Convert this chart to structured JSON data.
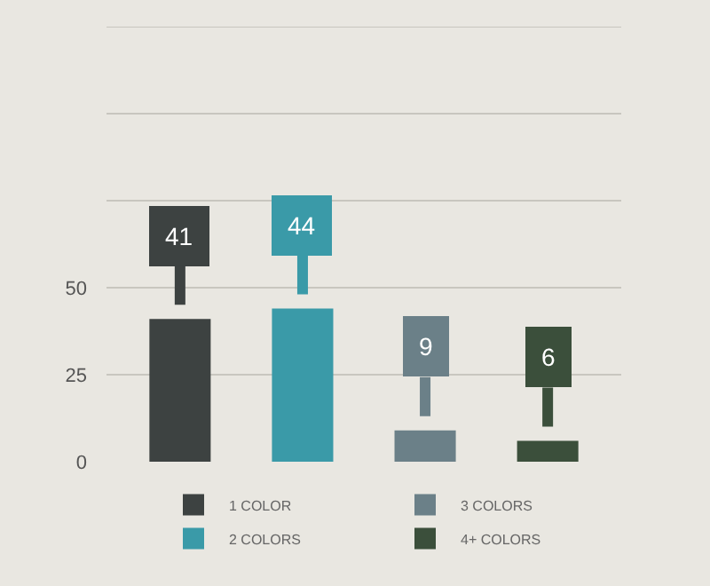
{
  "chart_data": {
    "type": "bar",
    "categories": [
      null,
      null,
      null,
      null
    ],
    "series": [
      {
        "name": "1 COLOR",
        "color": "#3d4241",
        "values": [
          41,
          null,
          null,
          null
        ]
      },
      {
        "name": "2 COLORS",
        "color": "#3a9aa8",
        "values": [
          null,
          44,
          null,
          null
        ]
      },
      {
        "name": "3 COLORS",
        "color": "#6b8088",
        "values": [
          null,
          null,
          9,
          null
        ]
      },
      {
        "name": "4+ COLORS",
        "color": "#3b4f3b",
        "values": [
          null,
          null,
          null,
          6
        ]
      }
    ],
    "ylim": [
      0,
      125
    ],
    "yticks": [
      0,
      25,
      50,
      {
        "value": 75,
        "label": null
      },
      {
        "value": 100,
        "label": null
      },
      {
        "value": 125,
        "label": null
      }
    ],
    "grid": "y",
    "legend": "bottom",
    "data_labels": true
  }
}
